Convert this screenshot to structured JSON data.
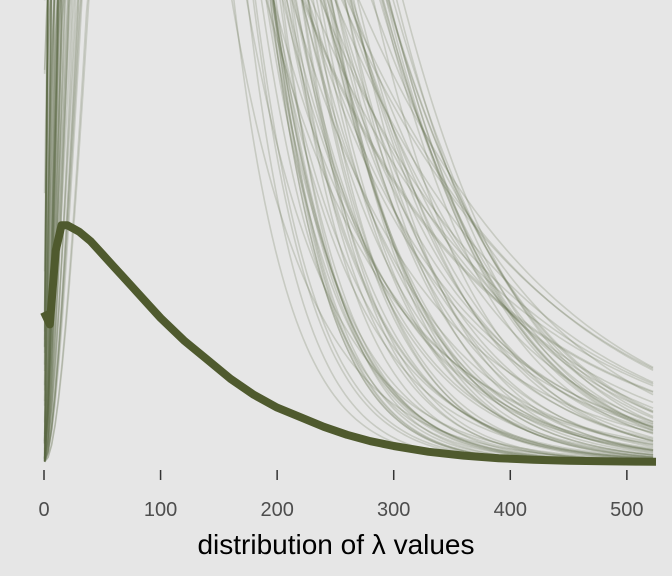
{
  "chart_data": {
    "type": "line",
    "title": "",
    "xlabel": "distribution of λ values",
    "ylabel": "",
    "xlim": [
      0,
      525
    ],
    "y_axis_shown": false,
    "grid": false,
    "legend": "none",
    "x_ticks": [
      0,
      100,
      200,
      300,
      400,
      500
    ],
    "x_tick_labels": [
      "0",
      "100",
      "200",
      "300",
      "400",
      "500"
    ],
    "colors": {
      "background": "#e6e6e6",
      "mean_line": "#4f5a2e",
      "draw_lines": "#5d6a45",
      "tick_text": "#4d4d4d"
    },
    "density_scale_note_free": true,
    "series": [
      {
        "role": "mean-density",
        "x": [
          0,
          5,
          10,
          15,
          20,
          25,
          30,
          40,
          50,
          60,
          70,
          80,
          90,
          100,
          120,
          140,
          160,
          180,
          200,
          220,
          240,
          260,
          280,
          300,
          330,
          360,
          390,
          420,
          450,
          480,
          510,
          525
        ],
        "y": [
          0.0,
          0.00043,
          0.00066,
          0.00074,
          0.00074,
          0.00073,
          0.00072,
          0.00069,
          0.00065,
          0.00061,
          0.00057,
          0.00053,
          0.00049,
          0.00045,
          0.00038,
          0.00032,
          0.00026,
          0.00021,
          0.00017,
          0.00014,
          0.00011,
          8.5e-05,
          6.5e-05,
          5e-05,
          3.2e-05,
          2e-05,
          1.2e-05,
          7e-06,
          4e-06,
          2.2e-06,
          1.2e-06,
          9e-07
        ]
      }
    ],
    "draws": {
      "count": 90,
      "description": "prior predictive gamma densities",
      "shape_range": [
        0.9,
        3.2
      ],
      "rate_range": [
        0.006,
        0.03
      ]
    }
  }
}
